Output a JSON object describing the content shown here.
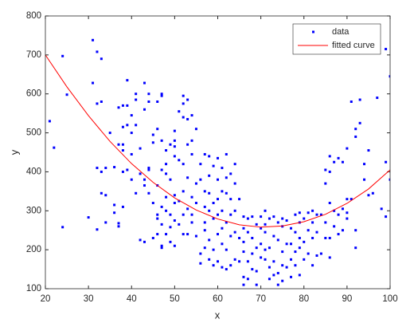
{
  "chart_data": {
    "type": "scatter",
    "xlabel": "x",
    "ylabel": "y",
    "xlim": [
      20,
      100
    ],
    "ylim": [
      100,
      800
    ],
    "xticks": [
      20,
      30,
      40,
      50,
      60,
      70,
      80,
      90,
      100
    ],
    "yticks": [
      100,
      200,
      300,
      400,
      500,
      600,
      700,
      800
    ],
    "grid": false,
    "legend": "upper right",
    "series": [
      {
        "name": "data",
        "type": "scatter",
        "color": "#0000ff",
        "x": [
          21,
          22,
          24,
          24,
          25,
          30,
          31,
          31,
          32,
          32,
          32,
          32,
          33,
          33,
          33,
          33,
          34,
          34,
          34,
          35,
          36,
          36,
          36,
          37,
          37,
          37,
          37,
          38,
          38,
          38,
          38,
          38,
          38,
          39,
          39,
          39,
          39,
          40,
          40,
          40,
          40,
          41,
          41,
          41,
          41,
          42,
          42,
          42,
          43,
          43,
          43,
          43,
          43,
          44,
          44,
          44,
          44,
          44,
          45,
          45,
          45,
          45,
          46,
          46,
          46,
          46,
          46,
          46,
          47,
          47,
          47,
          47,
          47,
          47,
          47,
          47,
          48,
          48,
          48,
          48,
          48,
          48,
          49,
          49,
          49,
          49,
          49,
          50,
          50,
          50,
          50,
          50,
          50,
          50,
          50,
          51,
          51,
          51,
          51,
          52,
          52,
          52,
          52,
          52,
          52,
          52,
          53,
          53,
          53,
          53,
          53,
          53,
          54,
          54,
          54,
          54,
          54,
          54,
          55,
          55,
          55,
          55,
          56,
          56,
          56,
          56,
          57,
          57,
          57,
          57,
          57,
          57,
          58,
          58,
          58,
          58,
          58,
          58,
          59,
          59,
          59,
          59,
          59,
          60,
          60,
          60,
          60,
          60,
          60,
          61,
          61,
          61,
          61,
          61,
          61,
          62,
          62,
          62,
          62,
          62,
          62,
          63,
          63,
          63,
          63,
          63,
          64,
          64,
          64,
          64,
          64,
          65,
          65,
          65,
          66,
          66,
          66,
          66,
          66,
          66,
          67,
          67,
          67,
          67,
          68,
          68,
          68,
          68,
          69,
          69,
          69,
          69,
          70,
          70,
          70,
          70,
          71,
          71,
          71,
          71,
          71,
          72,
          72,
          72,
          72,
          73,
          73,
          73,
          73,
          74,
          74,
          74,
          74,
          75,
          75,
          75,
          75,
          75,
          76,
          76,
          76,
          77,
          77,
          77,
          77,
          78,
          78,
          78,
          78,
          79,
          79,
          79,
          79,
          79,
          80,
          80,
          80,
          81,
          81,
          81,
          82,
          82,
          82,
          82,
          83,
          83,
          83,
          84,
          84,
          85,
          85,
          85,
          85,
          86,
          86,
          86,
          86,
          86,
          87,
          87,
          87,
          88,
          88,
          88,
          89,
          89,
          89,
          90,
          90,
          90,
          90,
          91,
          91,
          92,
          92,
          92,
          92,
          93,
          93,
          94,
          94,
          95,
          95,
          96,
          97,
          98,
          99,
          99,
          99,
          100,
          100
        ],
        "values": [
          530,
          462,
          697,
          258,
          598,
          283,
          738,
          628,
          410,
          575,
          252,
          708,
          580,
          690,
          345,
          400,
          340,
          410,
          270,
          500,
          412,
          315,
          295,
          268,
          260,
          470,
          565,
          570,
          400,
          515,
          455,
          310,
          470,
          405,
          520,
          570,
          635,
          380,
          445,
          500,
          545,
          600,
          585,
          345,
          520,
          460,
          395,
          225,
          628,
          560,
          380,
          365,
          220,
          580,
          410,
          345,
          405,
          600,
          495,
          475,
          320,
          230,
          365,
          290,
          240,
          280,
          510,
          580,
          600,
          595,
          480,
          405,
          310,
          265,
          210,
          205,
          455,
          420,
          300,
          240,
          335,
          395,
          470,
          380,
          290,
          258,
          220,
          505,
          480,
          465,
          440,
          340,
          320,
          275,
          210,
          555,
          430,
          325,
          265,
          595,
          575,
          540,
          420,
          350,
          290,
          240,
          585,
          535,
          470,
          385,
          305,
          240,
          545,
          480,
          445,
          335,
          290,
          270,
          510,
          370,
          320,
          235,
          420,
          380,
          190,
          165,
          445,
          350,
          310,
          270,
          250,
          205,
          440,
          390,
          345,
          300,
          225,
          175,
          415,
          320,
          280,
          200,
          160,
          435,
          380,
          330,
          290,
          240,
          170,
          410,
          350,
          300,
          255,
          215,
          155,
          445,
          385,
          345,
          270,
          200,
          150,
          395,
          330,
          290,
          235,
          160,
          420,
          370,
          300,
          245,
          175,
          330,
          230,
          170,
          285,
          255,
          220,
          195,
          130,
          110,
          280,
          245,
          170,
          125,
          285,
          230,
          190,
          150,
          265,
          205,
          145,
          110,
          285,
          255,
          215,
          180,
          300,
          265,
          245,
          200,
          175,
          280,
          205,
          155,
          125,
          285,
          235,
          170,
          135,
          270,
          225,
          140,
          110,
          280,
          260,
          195,
          160,
          120,
          275,
          215,
          155,
          255,
          215,
          175,
          130,
          290,
          245,
          195,
          160,
          295,
          270,
          230,
          205,
          135,
          280,
          220,
          175,
          295,
          250,
          190,
          300,
          270,
          230,
          160,
          290,
          245,
          185,
          290,
          190,
          405,
          370,
          270,
          230,
          440,
          400,
          320,
          230,
          180,
          425,
          300,
          260,
          435,
          290,
          240,
          305,
          250,
          425,
          460,
          330,
          295,
          280,
          580,
          330,
          510,
          490,
          250,
          205,
          525,
          585,
          420,
          380,
          455,
          340,
          345,
          590,
          305,
          285,
          715,
          425,
          645,
          380
        ]
      },
      {
        "name": "fitted curve",
        "type": "line",
        "color": "#ff0000",
        "x": [
          20,
          25,
          30,
          35,
          40,
          45,
          50,
          55,
          60,
          65,
          70,
          75,
          80,
          85,
          90,
          95,
          100
        ],
        "values": [
          700,
          618,
          544,
          478,
          421,
          373,
          333,
          302,
          279,
          264,
          258,
          261,
          272,
          291,
          319,
          356,
          405
        ]
      }
    ]
  }
}
